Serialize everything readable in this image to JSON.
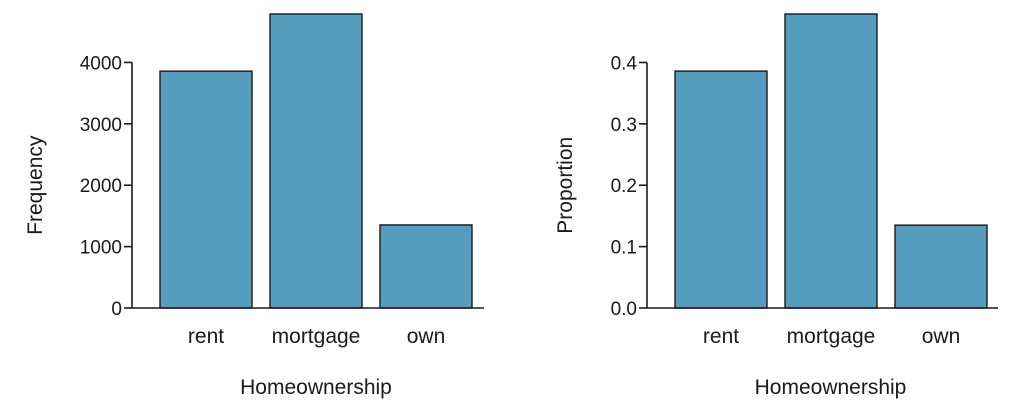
{
  "colors": {
    "bar_fill": "#559dbe",
    "ink": "#1a1a1a"
  },
  "chart_data": [
    {
      "type": "bar",
      "title": "",
      "xlabel": "Homeownership",
      "ylabel": "Frequency",
      "categories": [
        "rent",
        "mortgage",
        "own"
      ],
      "values": [
        3858,
        4789,
        1353
      ],
      "ylim": [
        0,
        4789
      ],
      "yticks": [
        0,
        1000,
        2000,
        3000,
        4000
      ],
      "ytick_labels": [
        "0",
        "1000",
        "2000",
        "3000",
        "4000"
      ],
      "grid": false,
      "legend": "none"
    },
    {
      "type": "bar",
      "title": "",
      "xlabel": "Homeownership",
      "ylabel": "Proportion",
      "categories": [
        "rent",
        "mortgage",
        "own"
      ],
      "values": [
        0.386,
        0.479,
        0.135
      ],
      "ylim": [
        0,
        0.479
      ],
      "yticks": [
        0,
        0.1,
        0.2,
        0.3,
        0.4
      ],
      "ytick_labels": [
        "0.0",
        "0.1",
        "0.2",
        "0.3",
        "0.4"
      ],
      "grid": false,
      "legend": "none"
    }
  ]
}
